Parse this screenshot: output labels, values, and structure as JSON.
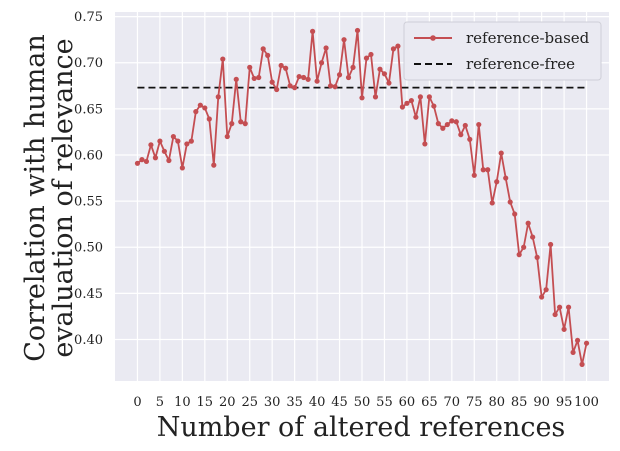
{
  "chart_data": {
    "type": "line",
    "xlabel": "Number of altered references",
    "ylabel": [
      "Correlation with human",
      "evaluation of relevance"
    ],
    "xlim": [
      -5,
      105
    ],
    "ylim": [
      0.355,
      0.755
    ],
    "xticks": [
      0,
      5,
      10,
      15,
      20,
      25,
      30,
      35,
      40,
      45,
      50,
      55,
      60,
      65,
      70,
      75,
      80,
      85,
      90,
      95,
      100
    ],
    "xtick_labels": [
      "0",
      "5",
      "10",
      "15",
      "20",
      "25",
      "30",
      "35",
      "40",
      "45",
      "50",
      "55",
      "60",
      "65",
      "70",
      "75",
      "80",
      "85",
      "90",
      "95",
      "100"
    ],
    "yticks": [
      0.4,
      0.45,
      0.5,
      0.55,
      0.6,
      0.65,
      0.7,
      0.75
    ],
    "ytick_labels": [
      "0.40",
      "0.45",
      "0.50",
      "0.55",
      "0.60",
      "0.65",
      "0.70",
      "0.75"
    ],
    "grid": true,
    "legend_position": "top-right",
    "colors": {
      "plot_background": "#eaeaf2",
      "grid": "#ffffff",
      "reference_based": "#c44e52",
      "reference_free": "#111111"
    },
    "series": [
      {
        "name": "reference-based",
        "style": "line-with-markers",
        "x": [
          0,
          1,
          2,
          3,
          4,
          5,
          6,
          7,
          8,
          9,
          10,
          11,
          12,
          13,
          14,
          15,
          16,
          17,
          18,
          19,
          20,
          21,
          22,
          23,
          24,
          25,
          26,
          27,
          28,
          29,
          30,
          31,
          32,
          33,
          34,
          35,
          36,
          37,
          38,
          39,
          40,
          41,
          42,
          43,
          44,
          45,
          46,
          47,
          48,
          49,
          50,
          51,
          52,
          53,
          54,
          55,
          56,
          57,
          58,
          59,
          60,
          61,
          62,
          63,
          64,
          65,
          66,
          67,
          68,
          69,
          70,
          71,
          72,
          73,
          74,
          75,
          76,
          77,
          78,
          79,
          80,
          81,
          82,
          83,
          84,
          85,
          86,
          87,
          88,
          89,
          90,
          91,
          92,
          93,
          94,
          95,
          96,
          97,
          98,
          99,
          100
        ],
        "y": [
          0.591,
          0.595,
          0.593,
          0.611,
          0.597,
          0.615,
          0.604,
          0.594,
          0.62,
          0.615,
          0.586,
          0.612,
          0.615,
          0.647,
          0.654,
          0.651,
          0.639,
          0.589,
          0.663,
          0.704,
          0.62,
          0.634,
          0.682,
          0.636,
          0.634,
          0.695,
          0.683,
          0.684,
          0.715,
          0.708,
          0.679,
          0.671,
          0.697,
          0.694,
          0.675,
          0.673,
          0.685,
          0.684,
          0.682,
          0.734,
          0.68,
          0.7,
          0.716,
          0.675,
          0.674,
          0.687,
          0.725,
          0.684,
          0.695,
          0.735,
          0.662,
          0.705,
          0.709,
          0.663,
          0.693,
          0.688,
          0.678,
          0.715,
          0.718,
          0.652,
          0.656,
          0.659,
          0.641,
          0.663,
          0.612,
          0.663,
          0.653,
          0.634,
          0.629,
          0.633,
          0.637,
          0.636,
          0.622,
          0.632,
          0.617,
          0.578,
          0.633,
          0.584,
          0.584,
          0.548,
          0.571,
          0.602,
          0.575,
          0.549,
          0.536,
          0.492,
          0.5,
          0.526,
          0.511,
          0.489,
          0.446,
          0.454,
          0.503,
          0.427,
          0.435,
          0.411,
          0.435,
          0.386,
          0.399,
          0.373,
          0.396
        ]
      },
      {
        "name": "reference-free",
        "style": "dashed",
        "x": [
          0,
          100
        ],
        "y": [
          0.673,
          0.673
        ]
      }
    ]
  }
}
